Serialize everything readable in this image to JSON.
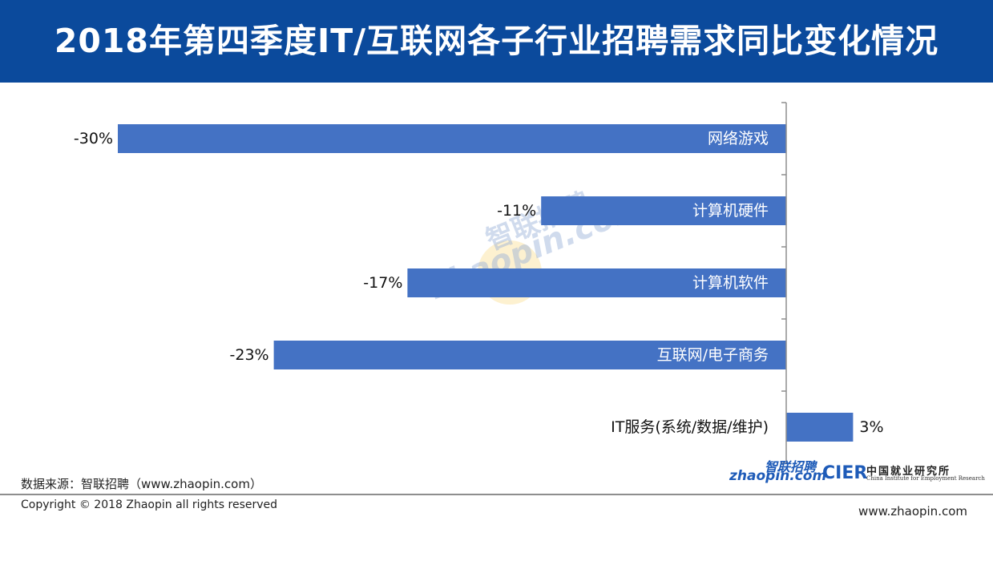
{
  "header": {
    "title": "2018年第四季度IT/互联网各子行业招聘需求同比变化情况"
  },
  "chart_data": {
    "type": "bar",
    "orientation": "horizontal",
    "title": "2018年第四季度IT/互联网各子行业招聘需求同比变化情况",
    "categories": [
      "网络游戏",
      "计算机硬件",
      "计算机软件",
      "互联网/电子商务",
      "IT服务(系统/数据/维护)"
    ],
    "values": [
      -30,
      -11,
      -17,
      -23,
      3
    ],
    "data_labels": [
      "-30%",
      "-11%",
      "-17%",
      "-23%",
      "3%"
    ],
    "unit": "%",
    "xlim": [
      -30,
      3
    ],
    "bar_color": "#4472c4",
    "grid": false,
    "legend": "none"
  },
  "watermark": {
    "cn": "智联招聘",
    "en": "zhaopin.com"
  },
  "footer": {
    "source": "数据来源：智联招聘（www.zhaopin.com）",
    "copyright": "Copyright © 2018 Zhaopin all rights reserved",
    "website": "www.zhaopin.com"
  },
  "logos": {
    "zhaopin_cn": "智联招聘",
    "zhaopin_en": "zhaopin.com",
    "cier": "CIER",
    "cier_cn": "中国就业研究所",
    "cier_en": "China Institute for Employment Research"
  },
  "colors": {
    "header_bg": "#0b4a9c",
    "bar": "#4472c4",
    "axis": "#8e8e8e"
  }
}
